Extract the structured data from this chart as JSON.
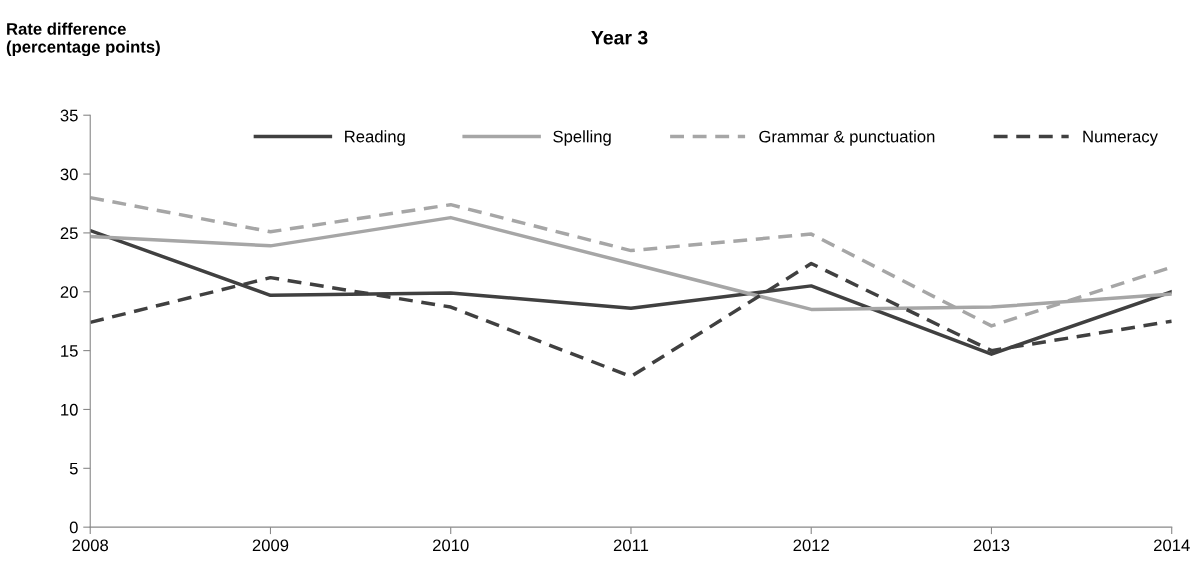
{
  "chart_data": {
    "type": "line",
    "title": "Year 3",
    "ylabel": "Rate difference\n(percentage points)",
    "x": [
      2008,
      2009,
      2010,
      2011,
      2012,
      2013,
      2014
    ],
    "series": [
      {
        "name": "Reading",
        "color": "#404040",
        "line_style": "solid",
        "values": [
          25.2,
          19.7,
          19.9,
          18.6,
          20.5,
          14.7,
          20.0
        ]
      },
      {
        "name": "Spelling",
        "color": "#a6a6a6",
        "line_style": "solid",
        "values": [
          24.7,
          23.9,
          26.3,
          22.4,
          18.5,
          18.7,
          19.8
        ]
      },
      {
        "name": "Grammar & punctuation",
        "color": "#a6a6a6",
        "line_style": "dashed",
        "values": [
          28.0,
          25.1,
          27.4,
          23.5,
          24.9,
          17.1,
          22.1
        ]
      },
      {
        "name": "Numeracy",
        "color": "#404040",
        "line_style": "dashed",
        "values": [
          17.4,
          21.2,
          18.7,
          12.8,
          22.4,
          15.0,
          17.5
        ]
      }
    ],
    "xlim": [
      2008,
      2014
    ],
    "xticks": [
      2008,
      2009,
      2010,
      2011,
      2012,
      2013,
      2014
    ],
    "ylim": [
      0,
      35
    ],
    "yticks": [
      0,
      5,
      10,
      15,
      20,
      25,
      30,
      35
    ],
    "grid": false,
    "legend": "top",
    "marker": "none"
  }
}
